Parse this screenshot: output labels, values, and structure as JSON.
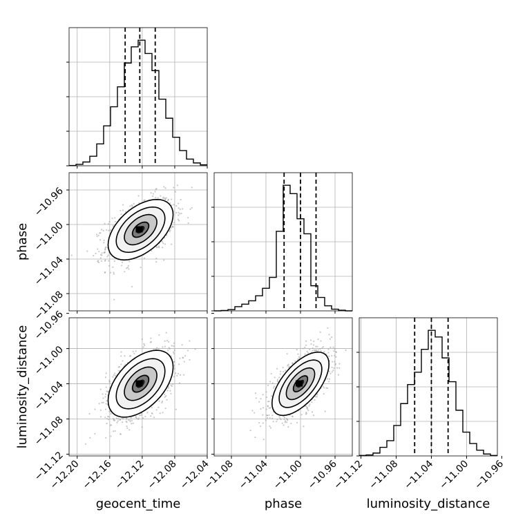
{
  "chart_data": {
    "type": "corner",
    "parameters": [
      "geocent_time",
      "phase",
      "luminosity_distance"
    ],
    "axes": {
      "geocent_time": {
        "range": [
          -12.21,
          -12.04
        ],
        "ticks": [
          -12.2,
          -12.16,
          -12.12,
          -12.08,
          -12.04
        ],
        "tick_labels": [
          "−12.20",
          "−12.16",
          "−12.12",
          "−12.08",
          "−12.04"
        ]
      },
      "phase": {
        "range": [
          -11.1,
          -10.94
        ],
        "ticks": [
          -11.08,
          -11.04,
          -11.0,
          -10.96
        ],
        "tick_labels": [
          "−11.08",
          "−11.04",
          "−11.00",
          "−10.96"
        ]
      },
      "luminosity_distance": {
        "range": [
          -11.122,
          -10.965
        ],
        "ticks": [
          -11.12,
          -11.08,
          -11.04,
          -11.0,
          -10.96
        ],
        "tick_labels": [
          "−11.12",
          "−11.08",
          "−11.04",
          "−11.00",
          "−10.96"
        ]
      }
    },
    "quantiles": {
      "geocent_time": [
        -12.141,
        -12.123,
        -12.104
      ],
      "phase": [
        -11.019,
        -11.0,
        -10.982
      ],
      "luminosity_distance": [
        -11.059,
        -11.04,
        -11.021
      ]
    },
    "histograms": {
      "geocent_time": {
        "bins": [
          -12.21,
          -12.2015,
          -12.193,
          -12.1845,
          -12.176,
          -12.1675,
          -12.159,
          -12.1505,
          -12.142,
          -12.1335,
          -12.125,
          -12.1165,
          -12.108,
          -12.0995,
          -12.091,
          -12.0825,
          -12.074,
          -12.0655,
          -12.057,
          -12.0485,
          -12.04
        ],
        "counts": [
          0.3,
          1.5,
          4,
          10,
          23,
          42,
          62,
          83,
          108,
          125,
          132,
          118,
          100,
          70,
          50,
          30,
          16,
          7,
          3,
          1
        ]
      },
      "phase": {
        "bins": [
          -11.1,
          -11.092,
          -11.084,
          -11.076,
          -11.068,
          -11.06,
          -11.052,
          -11.044,
          -11.036,
          -11.028,
          -11.02,
          -11.012,
          -11.004,
          -10.996,
          -10.988,
          -10.98,
          -10.972,
          -10.964,
          -10.956,
          -10.948,
          -10.94
        ],
        "counts": [
          0,
          0.5,
          1.5,
          5,
          8,
          12,
          18,
          27,
          40,
          95,
          150,
          140,
          110,
          92,
          30,
          16,
          6,
          2,
          0.8,
          0
        ]
      },
      "luminosity_distance": {
        "bins": [
          -11.122,
          -11.11415,
          -11.1063,
          -11.09845,
          -11.0906,
          -11.08275,
          -11.0749,
          -11.06705,
          -11.0592,
          -11.05135,
          -11.0435,
          -11.03565,
          -11.0278,
          -11.01995,
          -11.0121,
          -11.00425,
          -10.9964,
          -10.98855,
          -10.9807,
          -10.97285,
          -10.965
        ],
        "counts": [
          0.5,
          1,
          3,
          9,
          16,
          32,
          55,
          75,
          88,
          112,
          132,
          125,
          103,
          78,
          48,
          25,
          13,
          6,
          2,
          0.5
        ]
      }
    },
    "contour_panels": [
      {
        "x": "geocent_time",
        "y": "phase",
        "center": [
          -12.122,
          -11.006
        ],
        "sigma": [
          0.02,
          0.0175
        ],
        "rho": 0.5
      },
      {
        "x": "geocent_time",
        "y": "luminosity_distance",
        "center": [
          -12.122,
          -11.04
        ],
        "sigma": [
          0.02,
          0.019
        ],
        "rho": 0.5
      },
      {
        "x": "phase",
        "y": "luminosity_distance",
        "center": [
          -11.0,
          -11.04
        ],
        "sigma": [
          0.0165,
          0.018
        ],
        "rho": 0.62
      }
    ],
    "grid": true,
    "legend": "none"
  }
}
